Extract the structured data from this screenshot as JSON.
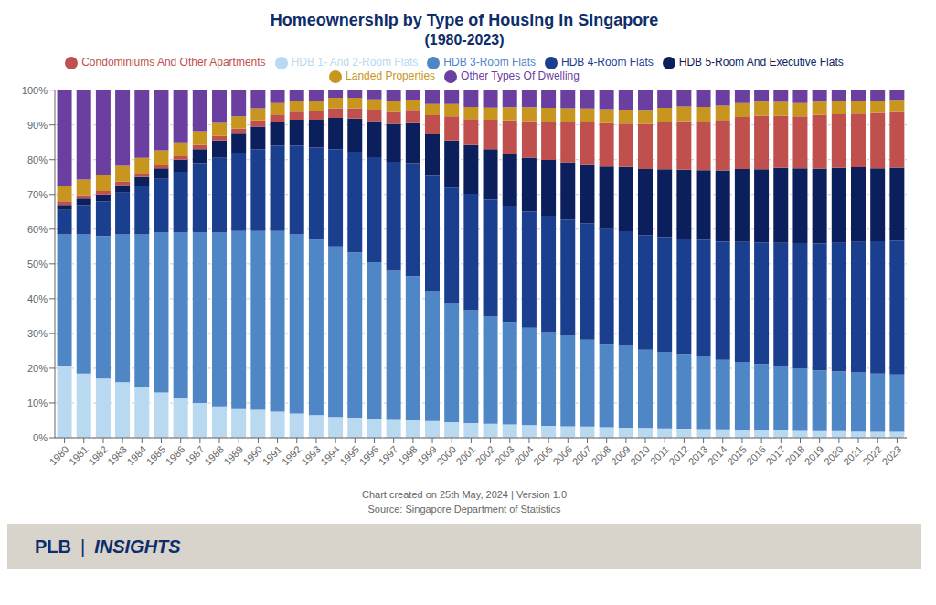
{
  "chart_data": {
    "type": "bar",
    "stacked": true,
    "grid": true,
    "legend": "top",
    "title": "Homeownership by Type of Housing in Singapore",
    "subtitle": "(1980-2023)",
    "annotations": [
      "Chart created on 25th May, 2024 | Version 1.0",
      "Source: Singapore Department of Statistics",
      "PLB",
      "|",
      "INSIGHTS"
    ],
    "categories": [
      "1980",
      "1981",
      "1982",
      "1983",
      "1984",
      "1985",
      "1986",
      "1987",
      "1988",
      "1989",
      "1990",
      "1991",
      "1992",
      "1993",
      "1994",
      "1995",
      "1996",
      "1997",
      "1998",
      "1999",
      "2000",
      "2001",
      "2002",
      "2003",
      "2004",
      "2005",
      "2006",
      "2007",
      "2008",
      "2009",
      "2010",
      "2011",
      "2012",
      "2013",
      "2014",
      "2015",
      "2016",
      "2017",
      "2018",
      "2019",
      "2020",
      "2021",
      "2022",
      "2023"
    ],
    "ylim": [
      0,
      100
    ],
    "yticks": [
      {
        "value": 0,
        "label": "0%"
      },
      {
        "value": 10,
        "label": "10%"
      },
      {
        "value": 20,
        "label": "20%"
      },
      {
        "value": 30,
        "label": "30%"
      },
      {
        "value": 40,
        "label": "40%"
      },
      {
        "value": 50,
        "label": "50%"
      },
      {
        "value": 60,
        "label": "60%"
      },
      {
        "value": 70,
        "label": "70%"
      },
      {
        "value": 80,
        "label": "80%"
      },
      {
        "value": 90,
        "label": "90%"
      },
      {
        "value": 100,
        "label": "100%"
      }
    ],
    "series": [
      {
        "name": "HDB 1- And 2-Room Flats",
        "color": "#b8d9f0",
        "values": [
          20.5,
          18.5,
          17.0,
          16.0,
          14.5,
          13.0,
          11.5,
          10.0,
          9.0,
          8.5,
          8.0,
          7.5,
          7.0,
          6.5,
          6.0,
          5.8,
          5.4455,
          5.1485,
          5.0,
          4.8,
          4.5,
          4.2,
          4.0,
          3.8,
          3.6,
          3.4,
          3.3,
          3.2,
          3.0,
          2.9,
          2.8,
          2.7,
          2.6,
          2.5,
          2.4,
          2.3,
          2.2,
          2.1,
          2.0,
          1.9,
          1.9,
          1.8,
          1.7,
          1.7
        ]
      },
      {
        "name": "HDB 3-Room Flats",
        "color": "#4f86c6",
        "values": [
          38.0,
          40.0,
          41.0,
          42.5,
          44.0,
          46.0,
          47.5,
          49.0,
          50.0,
          51.0,
          51.5,
          52.0,
          51.5,
          50.5,
          49.0,
          47.5,
          45.0495,
          43.0693,
          41.5,
          37.5,
          34.0,
          32.5,
          31.0,
          29.5,
          28.0,
          27.0,
          26.0,
          25.0,
          24.0,
          23.5,
          22.5,
          22.0,
          21.5,
          21.0,
          20.0,
          19.5,
          19.0,
          18.5,
          18.0,
          17.5,
          17.2,
          17.0,
          16.8,
          16.5
        ]
      },
      {
        "name": "HDB 4-Room Flats",
        "color": "#1a3f8f",
        "values": [
          7.0,
          8.5,
          10.0,
          12.0,
          14.0,
          15.5,
          17.5,
          20.0,
          21.5,
          22.5,
          23.5,
          24.5,
          25.5,
          26.5,
          28.0,
          29.0,
          30.198,
          31.1881,
          32.5,
          33.0,
          33.5,
          33.5,
          33.5,
          33.5,
          33.5,
          33.5,
          33.5,
          33.5,
          33.0,
          33.0,
          33.0,
          33.0,
          33.0,
          33.5,
          34.0,
          34.5,
          35.0,
          35.5,
          36.0,
          36.5,
          37.0,
          37.5,
          38.0,
          38.5
        ]
      },
      {
        "name": "HDB 5-Room And Executive Flats",
        "color": "#0b1f5c",
        "values": [
          1.5,
          1.8,
          2.0,
          2.2,
          2.5,
          3.0,
          3.5,
          4.0,
          5.0,
          5.5,
          6.5,
          7.0,
          7.5,
          8.0,
          9.0,
          9.5,
          10.396,
          10.8911,
          11.5,
          12.0,
          13.5,
          14.0,
          14.5,
          15.0,
          15.5,
          16.0,
          16.5,
          17.0,
          18.0,
          18.5,
          19.0,
          19.5,
          20.0,
          20.0,
          20.5,
          21.0,
          21.0,
          21.5,
          21.5,
          21.5,
          21.5,
          21.5,
          21.0,
          21.0
        ]
      },
      {
        "name": "Condominiums And Other Apartments",
        "color": "#c0504d",
        "values": [
          1.0,
          1.0,
          1.0,
          1.0,
          1.0,
          1.0,
          1.0,
          1.2,
          1.3,
          1.5,
          1.8,
          2.0,
          2.3,
          2.5,
          2.8,
          3.0,
          3.2673,
          3.4653,
          3.8,
          5.5,
          7.0,
          7.5,
          8.5,
          9.5,
          10.5,
          11.0,
          11.5,
          12.0,
          12.5,
          12.5,
          13.0,
          13.5,
          14.0,
          14.0,
          14.5,
          15.0,
          15.5,
          15.0,
          15.0,
          15.5,
          15.5,
          15.5,
          16.0,
          16.0
        ]
      },
      {
        "name": "Landed Properties",
        "color": "#c8961e",
        "values": [
          4.5,
          4.5,
          4.5,
          4.5,
          4.5,
          4.2,
          4.0,
          4.0,
          3.8,
          3.5,
          3.5,
          3.3,
          3.2,
          3.0,
          3.0,
          3.0,
          2.9703,
          2.9703,
          3.0,
          3.2,
          3.5,
          3.5,
          3.5,
          3.8,
          4.0,
          4.0,
          4.0,
          4.0,
          4.0,
          4.0,
          4.0,
          4.2,
          4.2,
          4.2,
          4.2,
          4.0,
          4.0,
          4.0,
          3.8,
          3.8,
          3.7,
          3.6,
          3.5,
          3.5
        ]
      },
      {
        "name": "Other Types Of Dwelling",
        "color": "#6b3fa0",
        "values": [
          27.5,
          25.7,
          24.5,
          21.8,
          19.5,
          17.3,
          15.0,
          11.8,
          9.4,
          7.5,
          5.2,
          3.7,
          3.0,
          3.0,
          2.2,
          2.2,
          2.6733,
          3.2673,
          2.7,
          4.0,
          4.0,
          4.8,
          5.0,
          4.9,
          4.9,
          5.1,
          5.2,
          5.3,
          5.5,
          5.6,
          5.7,
          5.1,
          4.7,
          4.8,
          4.4,
          3.7,
          3.3,
          3.4,
          3.7,
          3.3,
          3.2,
          3.1,
          3.0,
          2.8
        ]
      }
    ]
  }
}
